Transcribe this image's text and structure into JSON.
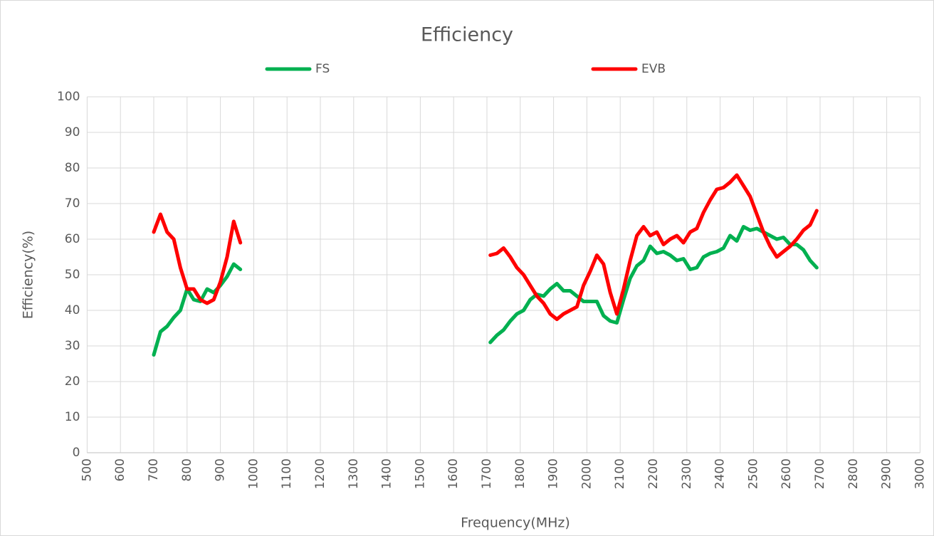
{
  "chart_data": {
    "type": "line",
    "title": "Efficiency",
    "x_label": "Frequency(MHz)",
    "y_label": "Efficiency(%)",
    "x": [
      700,
      720,
      740,
      760,
      780,
      800,
      820,
      840,
      860,
      880,
      900,
      920,
      940,
      960,
      1000,
      1710,
      1730,
      1750,
      1770,
      1790,
      1810,
      1830,
      1850,
      1870,
      1890,
      1910,
      1930,
      1950,
      1970,
      1990,
      2010,
      2030,
      2050,
      2070,
      2090,
      2110,
      2130,
      2150,
      2170,
      2190,
      2210,
      2230,
      2250,
      2270,
      2290,
      2310,
      2330,
      2350,
      2370,
      2390,
      2410,
      2430,
      2450,
      2470,
      2490,
      2510,
      2530,
      2550,
      2570,
      2590,
      2610,
      2630,
      2650,
      2670,
      2690
    ],
    "series": [
      {
        "name": "FS",
        "color": "#00b050",
        "values": [
          27.5,
          34,
          35.5,
          38,
          40,
          46,
          43,
          42.5,
          46,
          45,
          47,
          49.5,
          53,
          51.5,
          null,
          31,
          33,
          34.5,
          37,
          39,
          40,
          43,
          44.5,
          44,
          46,
          47.5,
          45.5,
          45.5,
          44,
          42.5,
          42.5,
          42.5,
          38.5,
          37,
          36.5,
          43,
          49,
          52.5,
          54,
          58,
          56,
          56.5,
          55.5,
          54,
          54.5,
          51.5,
          52,
          55,
          56,
          56.5,
          57.5,
          61,
          59.5,
          63.5,
          62.5,
          63,
          62,
          61,
          60,
          60.5,
          58.5,
          58.5,
          57,
          54,
          52
        ]
      },
      {
        "name": "EVB",
        "color": "#ff0000",
        "values": [
          62,
          67,
          62,
          60,
          52,
          46,
          46,
          43,
          42,
          43,
          48,
          55,
          65,
          59,
          null,
          55.5,
          56,
          57.5,
          55,
          52,
          50,
          47,
          44,
          42,
          39,
          37.5,
          39,
          40,
          41,
          47,
          51,
          55.5,
          53,
          45,
          39,
          46,
          54,
          61,
          63.5,
          61,
          62,
          58.5,
          60,
          61,
          59,
          62,
          63,
          67.5,
          71,
          74,
          74.5,
          76,
          78,
          75,
          72,
          67,
          62,
          58,
          55,
          56.5,
          58,
          60,
          62.5,
          64,
          68
        ]
      }
    ],
    "xlim": [
      500,
      3000
    ],
    "xticks": [
      500,
      600,
      700,
      800,
      900,
      1000,
      1100,
      1200,
      1300,
      1400,
      1500,
      1600,
      1700,
      1800,
      1900,
      2000,
      2100,
      2200,
      2300,
      2400,
      2500,
      2600,
      2700,
      2800,
      2900,
      3000
    ],
    "ylim": [
      0,
      100
    ],
    "yticks": [
      0,
      10,
      20,
      30,
      40,
      50,
      60,
      70,
      80,
      90,
      100
    ],
    "grid": true,
    "legend": "top"
  }
}
